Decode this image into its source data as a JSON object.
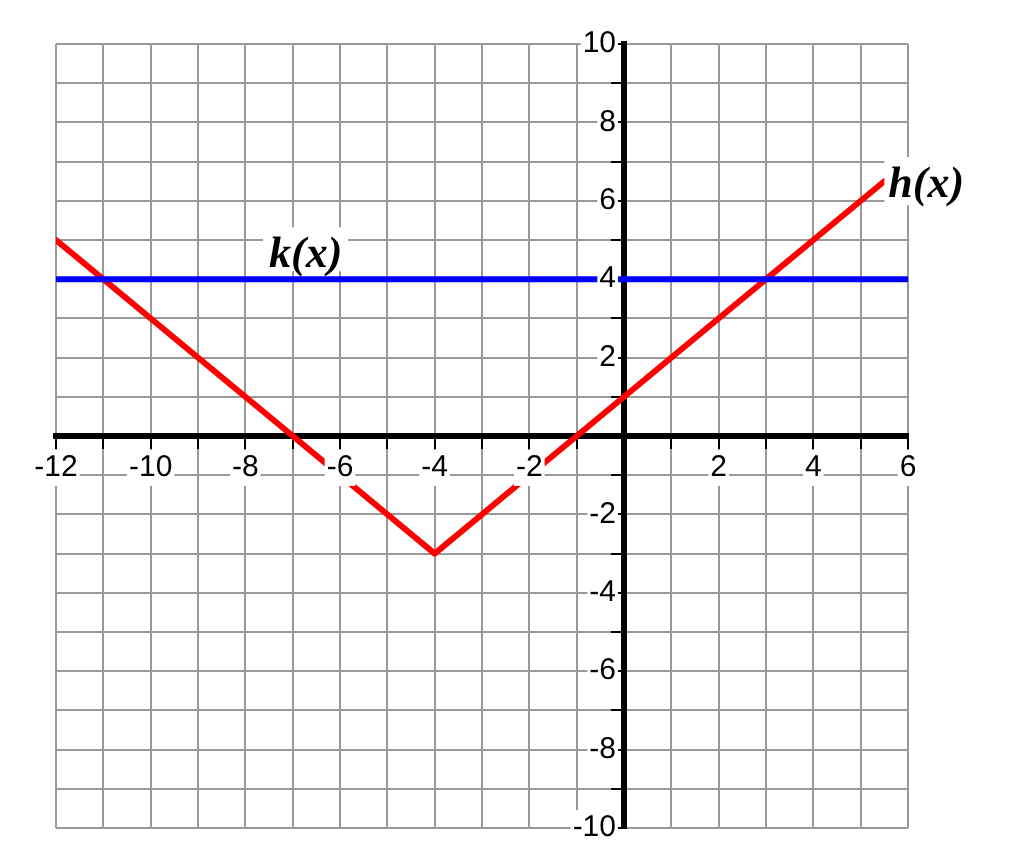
{
  "chart_data": {
    "type": "line",
    "xlim": [
      -12,
      6
    ],
    "ylim": [
      -10,
      10
    ],
    "xticks": [
      -12,
      {
        "value": -11,
        "label": null
      },
      -10,
      {
        "value": -9,
        "label": null
      },
      -8,
      {
        "value": -7,
        "label": null
      },
      -6,
      {
        "value": -5,
        "label": null
      },
      -4,
      {
        "value": -3,
        "label": null
      },
      -2,
      {
        "value": -1,
        "label": null
      },
      {
        "value": 0,
        "label": null
      },
      {
        "value": 1,
        "label": null
      },
      2,
      {
        "value": 3,
        "label": null
      },
      4,
      {
        "value": 5,
        "label": null
      },
      6
    ],
    "yticks": [
      -10,
      {
        "value": -9,
        "label": null
      },
      -8,
      {
        "value": -7,
        "label": null
      },
      -6,
      {
        "value": -5,
        "label": null
      },
      -4,
      {
        "value": -3,
        "label": null
      },
      -2,
      {
        "value": -1,
        "label": null
      },
      {
        "value": 0,
        "label": null
      },
      {
        "value": 1,
        "label": null
      },
      2,
      {
        "value": 3,
        "label": null
      },
      4,
      {
        "value": 5,
        "label": null
      },
      6,
      {
        "value": 7,
        "label": null
      },
      8,
      {
        "value": 9,
        "label": null
      },
      10
    ],
    "grid": true,
    "marker": "none",
    "line_style": "solid",
    "series": [
      {
        "name": "k(x)",
        "color": "#0000ff",
        "x": [
          -12,
          6
        ],
        "values": [
          4,
          4
        ]
      },
      {
        "name": "h(x)",
        "color": "#ff0000",
        "x": [
          -12,
          -4,
          5.5
        ],
        "values": [
          5,
          -3,
          6.5
        ]
      }
    ]
  }
}
